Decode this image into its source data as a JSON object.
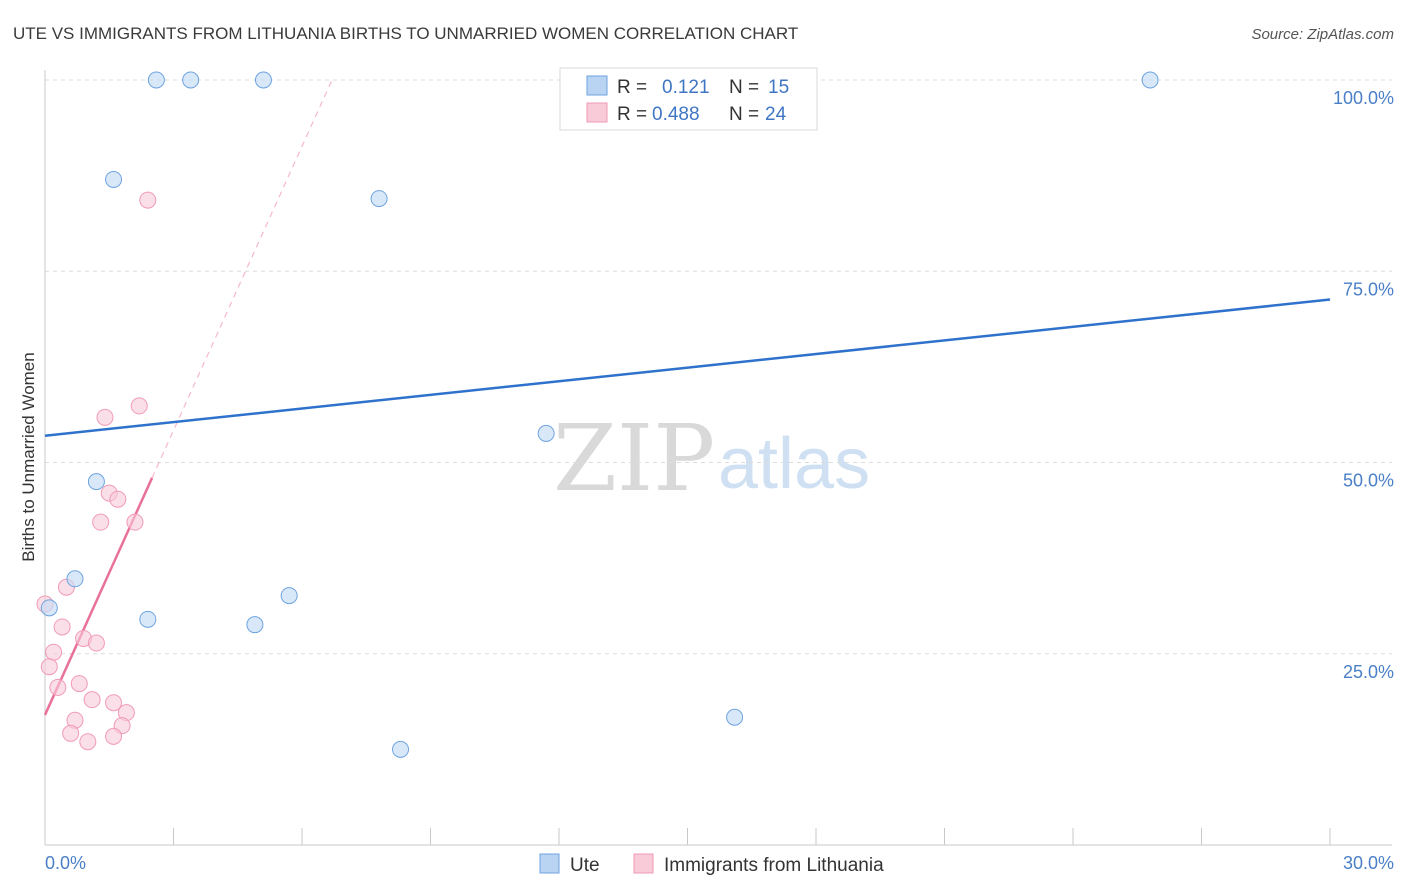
{
  "chart_data": {
    "type": "scatter",
    "title": "UTE VS IMMIGRANTS FROM LITHUANIA BIRTHS TO UNMARRIED WOMEN CORRELATION CHART",
    "source": "Source: ZipAtlas.com",
    "xlabel": "",
    "ylabel": "Births to Unmarried Women",
    "xlim": [
      0,
      30
    ],
    "ylim": [
      0,
      100
    ],
    "x_tick_labels": [
      "0.0%",
      "30.0%"
    ],
    "y_tick_labels": [
      "25.0%",
      "50.0%",
      "75.0%",
      "100.0%"
    ],
    "y_ticks": [
      25,
      50,
      75,
      100
    ],
    "colors": {
      "ute": "#6ea3e0",
      "lithuania": "#f19bb5",
      "ute_line": "#2f72cc",
      "lithuania_line": "#e8709a"
    },
    "series": [
      {
        "name": "Ute",
        "R": "0.121",
        "N": "15",
        "points": [
          [
            2.6,
            100
          ],
          [
            3.4,
            100
          ],
          [
            5.1,
            100
          ],
          [
            25.8,
            100
          ],
          [
            1.6,
            87.0
          ],
          [
            7.8,
            84.5
          ],
          [
            11.7,
            53.8
          ],
          [
            1.2,
            47.5
          ],
          [
            0.7,
            34.8
          ],
          [
            5.7,
            32.6
          ],
          [
            2.4,
            29.5
          ],
          [
            4.9,
            28.8
          ],
          [
            0.1,
            31.0
          ],
          [
            16.1,
            16.7
          ],
          [
            8.3,
            12.5
          ]
        ],
        "trend": {
          "x0": 0,
          "y0": 53.5,
          "x1": 30,
          "y1": 71.3
        }
      },
      {
        "name": "Immigrants from Lithuania",
        "R": "0.488",
        "N": "24",
        "points": [
          [
            2.4,
            84.3
          ],
          [
            2.2,
            57.4
          ],
          [
            1.4,
            55.9
          ],
          [
            1.5,
            46.0
          ],
          [
            1.7,
            45.2
          ],
          [
            1.3,
            42.2
          ],
          [
            2.1,
            42.2
          ],
          [
            0.5,
            33.7
          ],
          [
            0.0,
            31.5
          ],
          [
            0.4,
            28.5
          ],
          [
            0.9,
            27.0
          ],
          [
            1.2,
            26.4
          ],
          [
            0.2,
            25.2
          ],
          [
            0.1,
            23.3
          ],
          [
            0.8,
            21.1
          ],
          [
            0.3,
            20.6
          ],
          [
            1.1,
            19.0
          ],
          [
            1.6,
            18.6
          ],
          [
            1.9,
            17.3
          ],
          [
            0.7,
            16.3
          ],
          [
            1.8,
            15.6
          ],
          [
            0.6,
            14.6
          ],
          [
            1.6,
            14.2
          ],
          [
            1.0,
            13.5
          ]
        ],
        "trend": {
          "x0": 0,
          "y0": 17.0,
          "x1": 2.5,
          "y1": 48.0
        },
        "trend_ext": {
          "x0": 2.5,
          "y0": 48.0,
          "x1": 6.7,
          "y1": 100
        }
      }
    ],
    "legend": {
      "r_label": "R =",
      "n_label": "N =",
      "items": [
        "Ute",
        "Immigrants from Lithuania"
      ]
    }
  },
  "watermark": {
    "zip": "ZIP",
    "atlas": "atlas"
  }
}
